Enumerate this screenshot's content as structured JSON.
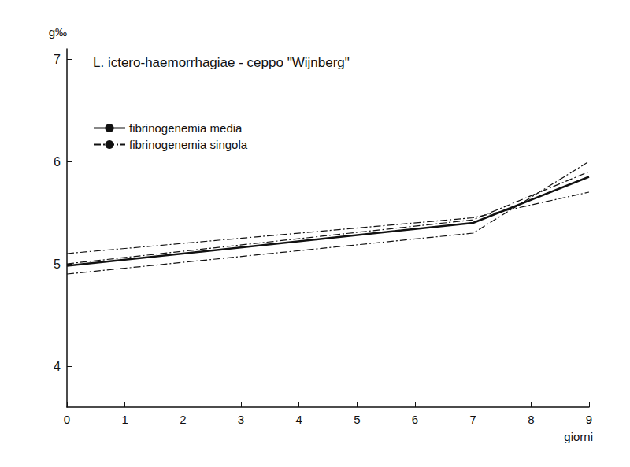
{
  "chart_data": {
    "type": "line",
    "title": "L. ictero-haemorrhagiae - ceppo \"Wijnberg\"",
    "x_label": "giorni",
    "y_label": "g‰",
    "x": [
      0,
      7,
      9
    ],
    "series": [
      {
        "name": "fibrinogenemia media",
        "color": "#111111",
        "line_style": "solid",
        "marker": "none",
        "values": [
          4.98,
          5.4,
          5.85
        ]
      },
      {
        "name": "fibrinogenemia singola",
        "color": "#111111",
        "line_style": "dashdot",
        "marker": "none",
        "values": [
          5.1,
          5.45,
          5.7
        ]
      },
      {
        "name": "fibrinogenemia singola",
        "color": "#111111",
        "line_style": "dashdot",
        "marker": "none",
        "values": [
          4.9,
          5.3,
          6.0
        ]
      },
      {
        "name": "fibrinogenemia singola",
        "color": "#111111",
        "line_style": "dashdot",
        "marker": "none",
        "values": [
          5.0,
          5.43,
          5.9
        ]
      }
    ],
    "xlim": [
      0,
      9
    ],
    "xticks": [
      0,
      1,
      2,
      3,
      4,
      5,
      6,
      7,
      8,
      9
    ],
    "ylim": [
      3.6,
      7.1
    ],
    "yticks": [
      4,
      5,
      6,
      7
    ],
    "grid": false,
    "legend": "upper left"
  }
}
